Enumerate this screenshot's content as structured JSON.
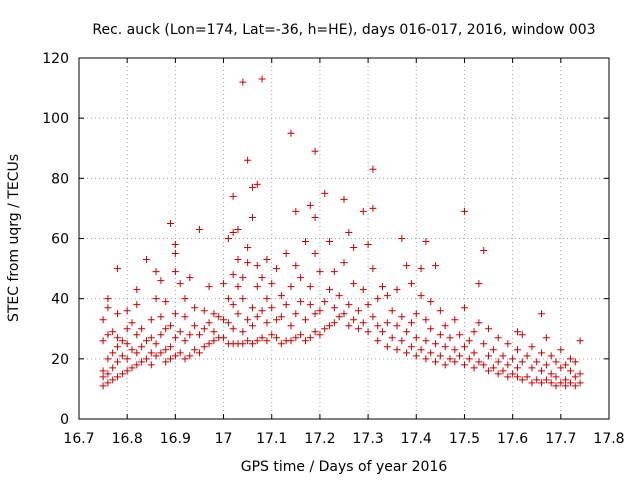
{
  "chart_data": {
    "type": "scatter",
    "title": "Rec. auck (Lon=174, Lat=-36, h=HE), days 016-017, 2016, window 003",
    "xlabel": "GPS time / Days of year 2016",
    "ylabel": "STEC from uqrg / TECUs",
    "xlim": [
      16.7,
      17.8
    ],
    "ylim": [
      0,
      120
    ],
    "xticks": [
      "16.7",
      "16.8",
      "16.9",
      "17",
      "17.1",
      "17.2",
      "17.3",
      "17.4",
      "17.5",
      "17.6",
      "17.7",
      "17.8"
    ],
    "yticks": [
      "0",
      "20",
      "40",
      "60",
      "80",
      "100",
      "120"
    ],
    "grid": true,
    "marker": "+",
    "color": "#cc0000",
    "points": [
      [
        16.75,
        11
      ],
      [
        16.75,
        14
      ],
      [
        16.75,
        16
      ],
      [
        16.75,
        26
      ],
      [
        16.75,
        33
      ],
      [
        16.76,
        12
      ],
      [
        16.76,
        15
      ],
      [
        16.76,
        20
      ],
      [
        16.76,
        28
      ],
      [
        16.76,
        37
      ],
      [
        16.76,
        40
      ],
      [
        16.77,
        13
      ],
      [
        16.77,
        17
      ],
      [
        16.77,
        22
      ],
      [
        16.77,
        29
      ],
      [
        16.78,
        14
      ],
      [
        16.78,
        19
      ],
      [
        16.78,
        24
      ],
      [
        16.78,
        27
      ],
      [
        16.78,
        50
      ],
      [
        16.78,
        35
      ],
      [
        16.79,
        15
      ],
      [
        16.79,
        21
      ],
      [
        16.79,
        26
      ],
      [
        16.8,
        16
      ],
      [
        16.8,
        20
      ],
      [
        16.8,
        25
      ],
      [
        16.8,
        30
      ],
      [
        16.8,
        36
      ],
      [
        16.81,
        17
      ],
      [
        16.81,
        23
      ],
      [
        16.81,
        32
      ],
      [
        16.82,
        18
      ],
      [
        16.82,
        22
      ],
      [
        16.82,
        28
      ],
      [
        16.82,
        38
      ],
      [
        16.82,
        43
      ],
      [
        16.83,
        19
      ],
      [
        16.83,
        24
      ],
      [
        16.83,
        30
      ],
      [
        16.84,
        20
      ],
      [
        16.84,
        26
      ],
      [
        16.84,
        53
      ],
      [
        16.85,
        18
      ],
      [
        16.85,
        22
      ],
      [
        16.85,
        27
      ],
      [
        16.85,
        33
      ],
      [
        16.86,
        21
      ],
      [
        16.86,
        25
      ],
      [
        16.86,
        49
      ],
      [
        16.86,
        40
      ],
      [
        16.87,
        22
      ],
      [
        16.87,
        28
      ],
      [
        16.87,
        34
      ],
      [
        16.87,
        46
      ],
      [
        16.88,
        19
      ],
      [
        16.88,
        23
      ],
      [
        16.88,
        30
      ],
      [
        16.88,
        39
      ],
      [
        16.89,
        20
      ],
      [
        16.89,
        24
      ],
      [
        16.89,
        31
      ],
      [
        16.89,
        65
      ],
      [
        16.9,
        21
      ],
      [
        16.9,
        27
      ],
      [
        16.9,
        35
      ],
      [
        16.9,
        49
      ],
      [
        16.9,
        58
      ],
      [
        16.9,
        55
      ],
      [
        16.91,
        22
      ],
      [
        16.91,
        29
      ],
      [
        16.91,
        45
      ],
      [
        16.92,
        20
      ],
      [
        16.92,
        26
      ],
      [
        16.92,
        34
      ],
      [
        16.92,
        40
      ],
      [
        16.93,
        21
      ],
      [
        16.93,
        28
      ],
      [
        16.93,
        47
      ],
      [
        16.94,
        23
      ],
      [
        16.94,
        31
      ],
      [
        16.94,
        37
      ],
      [
        16.95,
        22
      ],
      [
        16.95,
        28
      ],
      [
        16.95,
        63
      ],
      [
        16.96,
        24
      ],
      [
        16.96,
        30
      ],
      [
        16.96,
        36
      ],
      [
        16.97,
        25
      ],
      [
        16.97,
        32
      ],
      [
        16.97,
        44
      ],
      [
        16.98,
        26
      ],
      [
        16.98,
        29
      ],
      [
        16.98,
        35
      ],
      [
        16.99,
        27
      ],
      [
        16.99,
        34
      ],
      [
        17.0,
        27
      ],
      [
        17.0,
        33
      ],
      [
        17.0,
        45
      ],
      [
        17.01,
        25
      ],
      [
        17.01,
        32
      ],
      [
        17.01,
        40
      ],
      [
        17.01,
        60
      ],
      [
        17.02,
        25
      ],
      [
        17.02,
        30
      ],
      [
        17.02,
        38
      ],
      [
        17.02,
        48
      ],
      [
        17.02,
        74
      ],
      [
        17.02,
        62
      ],
      [
        17.03,
        25
      ],
      [
        17.03,
        35
      ],
      [
        17.03,
        44
      ],
      [
        17.03,
        53
      ],
      [
        17.03,
        63
      ],
      [
        17.04,
        112
      ],
      [
        17.04,
        25
      ],
      [
        17.04,
        29
      ],
      [
        17.04,
        40
      ],
      [
        17.04,
        47
      ],
      [
        17.05,
        26
      ],
      [
        17.05,
        33
      ],
      [
        17.05,
        52
      ],
      [
        17.05,
        86
      ],
      [
        17.05,
        57
      ],
      [
        17.06,
        25
      ],
      [
        17.06,
        31
      ],
      [
        17.06,
        37
      ],
      [
        17.06,
        77
      ],
      [
        17.06,
        67
      ],
      [
        17.07,
        26
      ],
      [
        17.07,
        34
      ],
      [
        17.07,
        44
      ],
      [
        17.07,
        51
      ],
      [
        17.07,
        78
      ],
      [
        17.08,
        113
      ],
      [
        17.08,
        27
      ],
      [
        17.08,
        36
      ],
      [
        17.08,
        47
      ],
      [
        17.09,
        26
      ],
      [
        17.09,
        32
      ],
      [
        17.09,
        40
      ],
      [
        17.09,
        53
      ],
      [
        17.1,
        28
      ],
      [
        17.1,
        37
      ],
      [
        17.1,
        45
      ],
      [
        17.11,
        27
      ],
      [
        17.11,
        33
      ],
      [
        17.11,
        50
      ],
      [
        17.12,
        25
      ],
      [
        17.12,
        34
      ],
      [
        17.12,
        41
      ],
      [
        17.13,
        26
      ],
      [
        17.13,
        38
      ],
      [
        17.13,
        55
      ],
      [
        17.14,
        95
      ],
      [
        17.14,
        26
      ],
      [
        17.14,
        31
      ],
      [
        17.14,
        44
      ],
      [
        17.15,
        27
      ],
      [
        17.15,
        35
      ],
      [
        17.15,
        51
      ],
      [
        17.15,
        69
      ],
      [
        17.16,
        28
      ],
      [
        17.16,
        39
      ],
      [
        17.16,
        47
      ],
      [
        17.17,
        26
      ],
      [
        17.17,
        33
      ],
      [
        17.17,
        59
      ],
      [
        17.18,
        27
      ],
      [
        17.18,
        38
      ],
      [
        17.18,
        44
      ],
      [
        17.18,
        71
      ],
      [
        17.19,
        89
      ],
      [
        17.19,
        29
      ],
      [
        17.19,
        35
      ],
      [
        17.19,
        55
      ],
      [
        17.19,
        67
      ],
      [
        17.2,
        28
      ],
      [
        17.2,
        36
      ],
      [
        17.2,
        49
      ],
      [
        17.21,
        75
      ],
      [
        17.21,
        30
      ],
      [
        17.21,
        39
      ],
      [
        17.22,
        31
      ],
      [
        17.22,
        43
      ],
      [
        17.22,
        59
      ],
      [
        17.23,
        32
      ],
      [
        17.23,
        37
      ],
      [
        17.23,
        49
      ],
      [
        17.24,
        34
      ],
      [
        17.24,
        41
      ],
      [
        17.25,
        35
      ],
      [
        17.25,
        73
      ],
      [
        17.25,
        52
      ],
      [
        17.26,
        31
      ],
      [
        17.26,
        38
      ],
      [
        17.26,
        62
      ],
      [
        17.27,
        33
      ],
      [
        17.27,
        45
      ],
      [
        17.27,
        57
      ],
      [
        17.28,
        30
      ],
      [
        17.28,
        36
      ],
      [
        17.29,
        32
      ],
      [
        17.29,
        43
      ],
      [
        17.29,
        69
      ],
      [
        17.3,
        29
      ],
      [
        17.3,
        38
      ],
      [
        17.3,
        58
      ],
      [
        17.31,
        83
      ],
      [
        17.31,
        34
      ],
      [
        17.31,
        50
      ],
      [
        17.31,
        70
      ],
      [
        17.32,
        26
      ],
      [
        17.32,
        31
      ],
      [
        17.32,
        40
      ],
      [
        17.33,
        29
      ],
      [
        17.33,
        44
      ],
      [
        17.34,
        24
      ],
      [
        17.34,
        32
      ],
      [
        17.34,
        41
      ],
      [
        17.35,
        27
      ],
      [
        17.35,
        36
      ],
      [
        17.36,
        23
      ],
      [
        17.36,
        31
      ],
      [
        17.36,
        43
      ],
      [
        17.37,
        60
      ],
      [
        17.37,
        26
      ],
      [
        17.37,
        34
      ],
      [
        17.38,
        22
      ],
      [
        17.38,
        29
      ],
      [
        17.38,
        51
      ],
      [
        17.39,
        24
      ],
      [
        17.39,
        32
      ],
      [
        17.39,
        45
      ],
      [
        17.4,
        21
      ],
      [
        17.4,
        27
      ],
      [
        17.4,
        35
      ],
      [
        17.41,
        50
      ],
      [
        17.41,
        23
      ],
      [
        17.41,
        41
      ],
      [
        17.42,
        59
      ],
      [
        17.42,
        20
      ],
      [
        17.42,
        26
      ],
      [
        17.42,
        33
      ],
      [
        17.43,
        22
      ],
      [
        17.43,
        30
      ],
      [
        17.43,
        39
      ],
      [
        17.44,
        19
      ],
      [
        17.44,
        25
      ],
      [
        17.44,
        51
      ],
      [
        17.45,
        21
      ],
      [
        17.45,
        28
      ],
      [
        17.45,
        36
      ],
      [
        17.46,
        18
      ],
      [
        17.46,
        24
      ],
      [
        17.46,
        31
      ],
      [
        17.47,
        20
      ],
      [
        17.47,
        27
      ],
      [
        17.48,
        19
      ],
      [
        17.48,
        23
      ],
      [
        17.48,
        33
      ],
      [
        17.49,
        21
      ],
      [
        17.49,
        28
      ],
      [
        17.5,
        69
      ],
      [
        17.5,
        18
      ],
      [
        17.5,
        24
      ],
      [
        17.5,
        37
      ],
      [
        17.51,
        20
      ],
      [
        17.51,
        26
      ],
      [
        17.52,
        17
      ],
      [
        17.52,
        22
      ],
      [
        17.52,
        29
      ],
      [
        17.53,
        45
      ],
      [
        17.53,
        19
      ],
      [
        17.53,
        32
      ],
      [
        17.54,
        56
      ],
      [
        17.54,
        18
      ],
      [
        17.54,
        25
      ],
      [
        17.55,
        16
      ],
      [
        17.55,
        21
      ],
      [
        17.55,
        30
      ],
      [
        17.56,
        17
      ],
      [
        17.56,
        23
      ],
      [
        17.57,
        15
      ],
      [
        17.57,
        19
      ],
      [
        17.57,
        27
      ],
      [
        17.58,
        16
      ],
      [
        17.58,
        21
      ],
      [
        17.59,
        14
      ],
      [
        17.59,
        18
      ],
      [
        17.59,
        25
      ],
      [
        17.6,
        15
      ],
      [
        17.6,
        20
      ],
      [
        17.61,
        14
      ],
      [
        17.61,
        17
      ],
      [
        17.61,
        23
      ],
      [
        17.61,
        29
      ],
      [
        17.62,
        13
      ],
      [
        17.62,
        19
      ],
      [
        17.62,
        28
      ],
      [
        17.63,
        14
      ],
      [
        17.63,
        21
      ],
      [
        17.64,
        12
      ],
      [
        17.64,
        17
      ],
      [
        17.64,
        24
      ],
      [
        17.65,
        13
      ],
      [
        17.65,
        19
      ],
      [
        17.66,
        12
      ],
      [
        17.66,
        16
      ],
      [
        17.66,
        22
      ],
      [
        17.66,
        35
      ],
      [
        17.67,
        13
      ],
      [
        17.67,
        18
      ],
      [
        17.67,
        27
      ],
      [
        17.68,
        12
      ],
      [
        17.68,
        15
      ],
      [
        17.68,
        21
      ],
      [
        17.69,
        11
      ],
      [
        17.69,
        14
      ],
      [
        17.69,
        19
      ],
      [
        17.7,
        12
      ],
      [
        17.7,
        17
      ],
      [
        17.7,
        23
      ],
      [
        17.71,
        11
      ],
      [
        17.71,
        13
      ],
      [
        17.71,
        18
      ],
      [
        17.72,
        12
      ],
      [
        17.72,
        16
      ],
      [
        17.72,
        20
      ],
      [
        17.73,
        11
      ],
      [
        17.73,
        14
      ],
      [
        17.73,
        19
      ],
      [
        17.74,
        12
      ],
      [
        17.74,
        15
      ],
      [
        17.74,
        26
      ]
    ]
  }
}
